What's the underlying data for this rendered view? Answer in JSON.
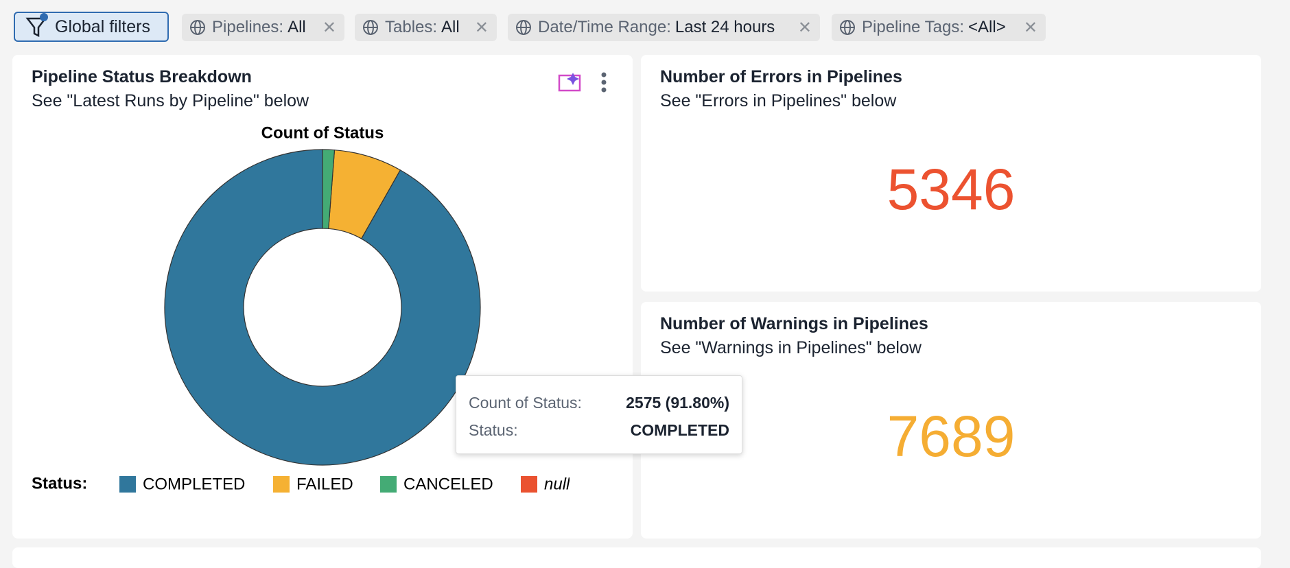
{
  "filters": {
    "global": "Global filters",
    "chips": [
      {
        "label": "Pipelines:",
        "value": "All"
      },
      {
        "label": "Tables:",
        "value": "All"
      },
      {
        "label": "Date/Time Range:",
        "value": "Last 24 hours"
      },
      {
        "label": "Pipeline Tags:",
        "value": "<All>"
      }
    ]
  },
  "cards": [
    {
      "title": "Pipeline Status Breakdown",
      "subtitle": "See \"Latest Runs by Pipeline\" below"
    },
    {
      "title": "Number of Errors in Pipelines",
      "subtitle": "See \"Errors in Pipelines\" below",
      "value": "5346",
      "color": "#ec5230"
    },
    {
      "title": "Number of Warnings in Pipelines",
      "subtitle": "See \"Warnings in Pipelines\" below",
      "value": "7689",
      "color": "#f5ad33"
    }
  ],
  "chart_data": {
    "type": "pie",
    "title": "Count of Status",
    "legend_title": "Status:",
    "categories": [
      "COMPLETED",
      "FAILED",
      "CANCELED",
      "null"
    ],
    "values": [
      2575,
      196,
      34,
      0
    ],
    "colors": [
      "#30779c",
      "#f5b133",
      "#44ab75",
      "#ea5230"
    ],
    "hole": 0.5,
    "tooltip": {
      "label": "Count of Status:",
      "value_label": "2575 (91.80%)",
      "status_label": "Status:"
    }
  }
}
